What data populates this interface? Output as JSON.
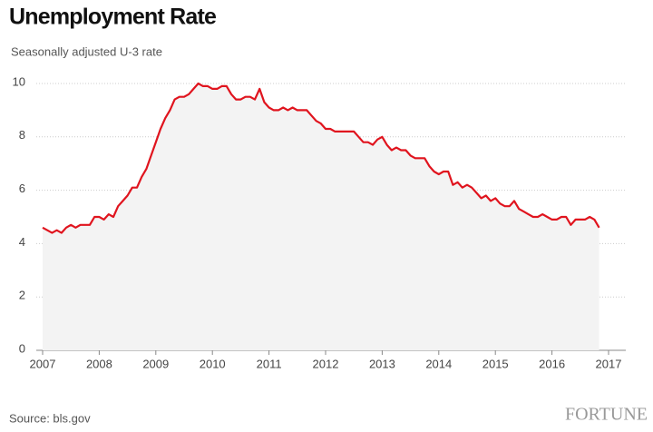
{
  "chart_data": {
    "type": "line",
    "title": "Unemployment Rate",
    "subtitle": "Seasonally adjusted U-3 rate",
    "source": "Source: bls.gov",
    "brand": "FORTUNE",
    "x": [
      2007,
      2007.083,
      2007.167,
      2007.25,
      2007.333,
      2007.417,
      2007.5,
      2007.583,
      2007.667,
      2007.75,
      2007.833,
      2007.917,
      2008,
      2008.083,
      2008.167,
      2008.25,
      2008.333,
      2008.417,
      2008.5,
      2008.583,
      2008.667,
      2008.75,
      2008.833,
      2008.917,
      2009,
      2009.083,
      2009.167,
      2009.25,
      2009.333,
      2009.417,
      2009.5,
      2009.583,
      2009.667,
      2009.75,
      2009.833,
      2009.917,
      2010,
      2010.083,
      2010.167,
      2010.25,
      2010.333,
      2010.417,
      2010.5,
      2010.583,
      2010.667,
      2010.75,
      2010.833,
      2010.917,
      2011,
      2011.083,
      2011.167,
      2011.25,
      2011.333,
      2011.417,
      2011.5,
      2011.583,
      2011.667,
      2011.75,
      2011.833,
      2011.917,
      2012,
      2012.083,
      2012.167,
      2012.25,
      2012.333,
      2012.417,
      2012.5,
      2012.583,
      2012.667,
      2012.75,
      2012.833,
      2012.917,
      2013,
      2013.083,
      2013.167,
      2013.25,
      2013.333,
      2013.417,
      2013.5,
      2013.583,
      2013.667,
      2013.75,
      2013.833,
      2013.917,
      2014,
      2014.083,
      2014.167,
      2014.25,
      2014.333,
      2014.417,
      2014.5,
      2014.583,
      2014.667,
      2014.75,
      2014.833,
      2014.917,
      2015,
      2015.083,
      2015.167,
      2015.25,
      2015.333,
      2015.417,
      2015.5,
      2015.583,
      2015.667,
      2015.75,
      2015.833,
      2015.917,
      2016,
      2016.083,
      2016.167,
      2016.25,
      2016.333,
      2016.417,
      2016.5,
      2016.583,
      2016.667,
      2016.75,
      2016.833
    ],
    "values": [
      4.6,
      4.5,
      4.4,
      4.5,
      4.4,
      4.6,
      4.7,
      4.6,
      4.7,
      4.7,
      4.7,
      5.0,
      5.0,
      4.9,
      5.1,
      5.0,
      5.4,
      5.6,
      5.8,
      6.1,
      6.1,
      6.5,
      6.8,
      7.3,
      7.8,
      8.3,
      8.7,
      9.0,
      9.4,
      9.5,
      9.5,
      9.6,
      9.8,
      10.0,
      9.9,
      9.9,
      9.8,
      9.8,
      9.9,
      9.9,
      9.6,
      9.4,
      9.4,
      9.5,
      9.5,
      9.4,
      9.8,
      9.3,
      9.1,
      9.0,
      9.0,
      9.1,
      9.0,
      9.1,
      9.0,
      9.0,
      9.0,
      8.8,
      8.6,
      8.5,
      8.3,
      8.3,
      8.2,
      8.2,
      8.2,
      8.2,
      8.2,
      8.0,
      7.8,
      7.8,
      7.7,
      7.9,
      8.0,
      7.7,
      7.5,
      7.6,
      7.5,
      7.5,
      7.3,
      7.2,
      7.2,
      7.2,
      6.9,
      6.7,
      6.6,
      6.7,
      6.7,
      6.2,
      6.3,
      6.1,
      6.2,
      6.1,
      5.9,
      5.7,
      5.8,
      5.6,
      5.7,
      5.5,
      5.4,
      5.4,
      5.6,
      5.3,
      5.2,
      5.1,
      5.0,
      5.0,
      5.1,
      5.0,
      4.9,
      4.9,
      5.0,
      5.0,
      4.7,
      4.9,
      4.9,
      4.9,
      5.0,
      4.9,
      4.6
    ],
    "color": "#e0141e",
    "area_color": "#f3f3f3",
    "xlim": [
      2007,
      2017
    ],
    "xticks": [
      2007,
      2008,
      2009,
      2010,
      2011,
      2012,
      2013,
      2014,
      2015,
      2016,
      2017
    ],
    "ylim": [
      0,
      10
    ],
    "yticks": [
      0,
      2,
      4,
      6,
      8,
      10
    ],
    "grid": true
  }
}
